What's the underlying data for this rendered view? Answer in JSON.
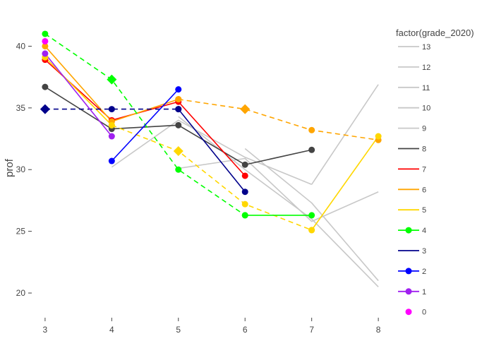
{
  "chart_data": {
    "type": "line",
    "title": "",
    "xlabel": "",
    "ylabel": "prof",
    "xlim": [
      2.8,
      8.2
    ],
    "ylim": [
      18.0,
      42.6
    ],
    "xticks": [
      "3",
      "4",
      "5",
      "6",
      "7",
      "8"
    ],
    "xtick_values": [
      3,
      4,
      5,
      6,
      7,
      8
    ],
    "yticks": [
      "20",
      "25",
      "30",
      "35",
      "40"
    ],
    "ytick_values": [
      20,
      25,
      30,
      35,
      40
    ],
    "grid": false,
    "legend_title": "factor(grade_2020)",
    "legend_position": "right",
    "series": [
      {
        "name": "13",
        "color": "#c8c8c8",
        "dash": "solid",
        "marker": "none",
        "x": [
          5,
          6,
          7,
          8
        ],
        "y": [
          34.3,
          30.0,
          26.0,
          20.5
        ]
      },
      {
        "name": "12",
        "color": "#c8c8c8",
        "dash": "solid",
        "marker": "none",
        "x": [
          4,
          5,
          6,
          7
        ],
        "y": [
          30.2,
          34.0,
          31.0,
          28.8
        ]
      },
      {
        "name": "11",
        "color": "#c8c8c8",
        "dash": "solid",
        "marker": "none",
        "x": [
          7,
          8
        ],
        "y": [
          28.8,
          36.9
        ]
      },
      {
        "name": "10",
        "color": "#c8c8c8",
        "dash": "solid",
        "marker": "none",
        "x": [
          5,
          6,
          7,
          8
        ],
        "y": [
          30.1,
          30.9,
          25.8,
          28.2
        ]
      },
      {
        "name": "9",
        "color": "#c8c8c8",
        "dash": "solid",
        "marker": "none",
        "x": [
          6,
          7,
          8
        ],
        "y": [
          31.7,
          27.3,
          21.0
        ]
      },
      {
        "name": "8",
        "color": "#444444",
        "dash": "solid",
        "marker": "circle",
        "x": [
          3,
          4,
          5,
          6,
          7
        ],
        "y": [
          36.7,
          33.3,
          33.6,
          30.4,
          31.6
        ]
      },
      {
        "name": "7",
        "color": "#ff0000",
        "dash": "solid",
        "marker": "circle",
        "x": [
          3,
          4,
          5,
          6
        ],
        "y": [
          38.9,
          34.0,
          35.5,
          29.5
        ]
      },
      {
        "name": "6",
        "color": "#ffa500",
        "dash": "solid",
        "marker": "circle",
        "x": [
          3,
          4,
          5
        ],
        "y": [
          40.0,
          33.9,
          35.7
        ]
      },
      {
        "name": "6",
        "color": "#ffa500",
        "dash": "dash",
        "marker": "circle",
        "x": [
          5,
          6,
          7,
          8
        ],
        "y": [
          35.7,
          34.9,
          33.2,
          32.4
        ]
      },
      {
        "name": "5",
        "color": "#ffd700",
        "dash": "solid",
        "marker": "circle",
        "x": [
          3,
          4
        ],
        "y": [
          39.1,
          33.6
        ]
      },
      {
        "name": "5",
        "color": "#ffd700",
        "dash": "dash",
        "marker": "circle",
        "x": [
          4,
          5,
          6,
          7
        ],
        "y": [
          33.6,
          31.5,
          27.2,
          25.1
        ]
      },
      {
        "name": "5",
        "color": "#ffd700",
        "dash": "solid",
        "marker": "circle",
        "x": [
          7,
          8
        ],
        "y": [
          25.1,
          32.7
        ]
      },
      {
        "name": "4",
        "color": "#00ff00",
        "dash": "dash",
        "marker": "circle",
        "x": [
          3,
          4,
          5,
          6
        ],
        "y": [
          41.0,
          37.3,
          30.0,
          26.3
        ]
      },
      {
        "name": "4",
        "color": "#00ff00",
        "dash": "solid",
        "marker": "circle",
        "x": [
          6,
          7
        ],
        "y": [
          26.3,
          26.3
        ]
      },
      {
        "name": "3",
        "color": "#00008b",
        "dash": "dash",
        "marker": "circle",
        "x": [
          3,
          4,
          5
        ],
        "y": [
          34.9,
          34.9,
          34.9
        ]
      },
      {
        "name": "3",
        "color": "#00008b",
        "dash": "solid",
        "marker": "circle",
        "x": [
          5,
          6
        ],
        "y": [
          34.9,
          28.2
        ]
      },
      {
        "name": "2",
        "color": "#0000ff",
        "dash": "solid",
        "marker": "circle",
        "x": [
          4,
          5
        ],
        "y": [
          30.7,
          36.5
        ]
      },
      {
        "name": "1",
        "color": "#a020f0",
        "dash": "solid",
        "marker": "circle",
        "x": [
          3,
          4
        ],
        "y": [
          39.4,
          32.7
        ]
      },
      {
        "name": "0",
        "color": "#ff00ff",
        "dash": "solid",
        "marker": "circle",
        "x": [
          3
        ],
        "y": [
          40.4
        ]
      }
    ],
    "diamond_markers": [
      {
        "color": "#00008b",
        "x": 3,
        "y": 34.9
      },
      {
        "color": "#00ff00",
        "x": 4,
        "y": 37.3
      },
      {
        "color": "#ffd700",
        "x": 5,
        "y": 31.5
      },
      {
        "color": "#ffa500",
        "x": 6,
        "y": 34.9
      }
    ],
    "legend": [
      {
        "label": "13",
        "color": "#c8c8c8",
        "marker": false,
        "line": true
      },
      {
        "label": "12",
        "color": "#c8c8c8",
        "marker": false,
        "line": true
      },
      {
        "label": "11",
        "color": "#c8c8c8",
        "marker": false,
        "line": true
      },
      {
        "label": "10",
        "color": "#c8c8c8",
        "marker": false,
        "line": true
      },
      {
        "label": "9",
        "color": "#c8c8c8",
        "marker": false,
        "line": true
      },
      {
        "label": "8",
        "color": "#444444",
        "marker": false,
        "line": true
      },
      {
        "label": "7",
        "color": "#ff0000",
        "marker": false,
        "line": true
      },
      {
        "label": "6",
        "color": "#ffa500",
        "marker": false,
        "line": true
      },
      {
        "label": "5",
        "color": "#ffd700",
        "marker": false,
        "line": true
      },
      {
        "label": "4",
        "color": "#00ff00",
        "marker": true,
        "line": true
      },
      {
        "label": "3",
        "color": "#00008b",
        "marker": false,
        "line": true
      },
      {
        "label": "2",
        "color": "#0000ff",
        "marker": true,
        "line": true
      },
      {
        "label": "1",
        "color": "#a020f0",
        "marker": true,
        "line": true
      },
      {
        "label": "0",
        "color": "#ff00ff",
        "marker": true,
        "line": false
      }
    ]
  }
}
